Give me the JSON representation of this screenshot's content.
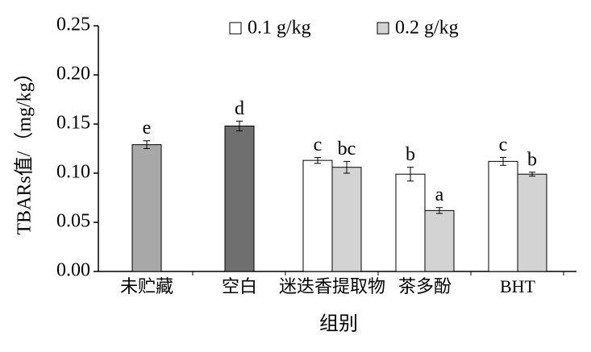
{
  "chart_data": {
    "type": "bar",
    "x_label": "组别",
    "y_label": "TBARs值/（mg/kg）",
    "categories": [
      "未贮藏",
      "空白",
      "迷迭香提取物",
      "茶多酚",
      "BHT"
    ],
    "single": {
      "values": [
        0.129,
        0.148,
        null,
        null,
        null
      ],
      "errors": [
        0.004,
        0.005,
        null,
        null,
        null
      ],
      "colors": [
        "#a8a8a8",
        "#6f6f6f",
        null,
        null,
        null
      ],
      "labels": [
        "e",
        "d",
        null,
        null,
        null
      ]
    },
    "series": [
      {
        "name": "0.1 g/kg",
        "color": "#ffffff",
        "values": [
          null,
          null,
          0.113,
          0.099,
          0.112
        ],
        "errors": [
          null,
          null,
          0.003,
          0.007,
          0.004
        ],
        "labels": [
          null,
          null,
          "c",
          "b",
          "c"
        ]
      },
      {
        "name": "0.2 g/kg",
        "color": "#d3d3d3",
        "values": [
          null,
          null,
          0.106,
          0.062,
          0.099
        ],
        "errors": [
          null,
          null,
          0.006,
          0.003,
          0.002
        ],
        "labels": [
          null,
          null,
          "bc",
          "a",
          "b"
        ]
      }
    ],
    "ylim": [
      0,
      0.25
    ],
    "yticks": [
      {
        "value": 0,
        "label": "0.00"
      },
      {
        "value": 0.05,
        "label": "0.05"
      },
      {
        "value": 0.1,
        "label": "0.10"
      },
      {
        "value": 0.15,
        "label": "0.15"
      },
      {
        "value": 0.2,
        "label": "0.20"
      },
      {
        "value": 0.25,
        "label": "0.25"
      }
    ]
  }
}
